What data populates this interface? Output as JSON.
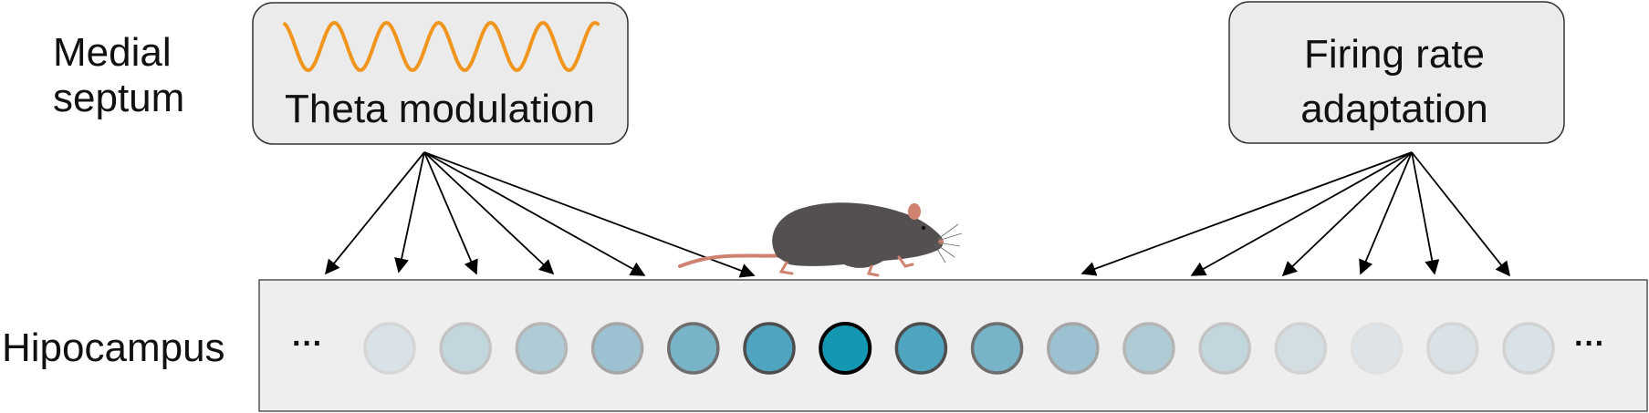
{
  "labels": {
    "medial_septum_line1": "Medial",
    "medial_septum_line2": "septum",
    "hippocampus": "Hipocampus",
    "ellipsis_left": "···",
    "ellipsis_right": "···"
  },
  "boxes": {
    "theta": {
      "label": "Theta modulation",
      "wave_icon": "sine-wave-icon",
      "wave_color": "#F0961E"
    },
    "adaptation": {
      "line1": "Firing rate",
      "line2": "adaptation"
    }
  },
  "neurons": {
    "count": 16,
    "active_index": 6,
    "fill_colors": [
      "#D9E2E6",
      "#C2D6DD",
      "#AECBD6",
      "#9CC2D2",
      "#78B3C7",
      "#4FA5BF",
      "#1397B3",
      "#4FA5BF",
      "#78B3C7",
      "#9CC2D2",
      "#AECBD6",
      "#C2D6DD",
      "#D3DEE2",
      "#DDE3E6",
      "#D9E2E6",
      "#D9E2E6"
    ],
    "stroke_colors": [
      "#D6D6D6",
      "#C4C4C4",
      "#B6B6B6",
      "#A6A6A6",
      "#6E6E6E",
      "#4D4D4D",
      "#000000",
      "#4D4D4D",
      "#6E6E6E",
      "#A6A6A6",
      "#B6B6B6",
      "#C4C4C4",
      "#D2D2D2",
      "#E0E0E0",
      "#D6D6D6",
      "#D2D2D2"
    ]
  },
  "theta_targets": 6,
  "adaptation_targets": 6,
  "colors": {
    "box_fill": "#EBEBEB",
    "box_stroke": "#333333",
    "strip_fill": "#EEEEEE",
    "arrow": "#000000",
    "rat_body": "#545050",
    "rat_tail": "#D08270"
  },
  "icons": {
    "rat": "rat-icon"
  }
}
